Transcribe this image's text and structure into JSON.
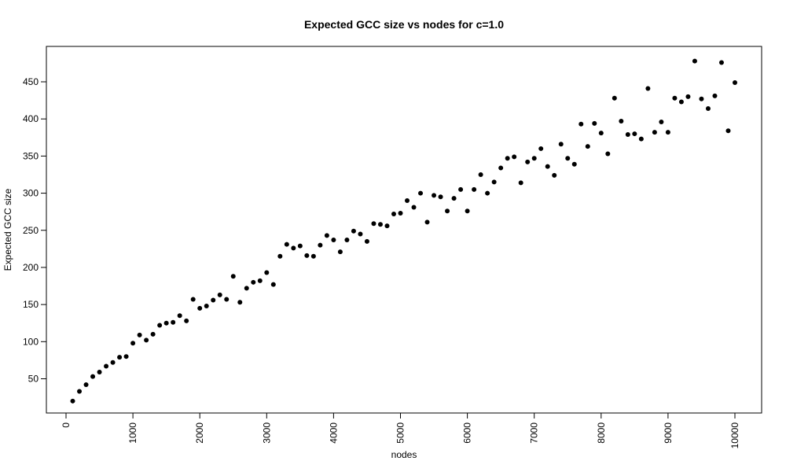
{
  "chart_data": {
    "type": "scatter",
    "title": "Expected GCC size vs nodes for c=1.0",
    "xlabel": "nodes",
    "ylabel": "Expected GCC size",
    "xlim": [
      0,
      10000
    ],
    "ylim": [
      15,
      480
    ],
    "x_ticks": [
      0,
      1000,
      2000,
      3000,
      4000,
      5000,
      6000,
      7000,
      8000,
      9000,
      10000
    ],
    "y_ticks": [
      50,
      100,
      150,
      200,
      250,
      300,
      350,
      400,
      450
    ],
    "grid": false,
    "legend": "none",
    "point_color": "#000000",
    "x": [
      100,
      200,
      300,
      400,
      500,
      600,
      700,
      800,
      900,
      1000,
      1100,
      1200,
      1300,
      1400,
      1500,
      1600,
      1700,
      1800,
      1900,
      2000,
      2100,
      2200,
      2300,
      2400,
      2500,
      2600,
      2700,
      2800,
      2900,
      3000,
      3100,
      3200,
      3300,
      3400,
      3500,
      3600,
      3700,
      3800,
      3900,
      4000,
      4100,
      4200,
      4300,
      4400,
      4500,
      4600,
      4700,
      4800,
      4900,
      5000,
      5100,
      5200,
      5300,
      5400,
      5500,
      5600,
      5700,
      5800,
      5900,
      6000,
      6100,
      6200,
      6300,
      6400,
      6500,
      6600,
      6700,
      6800,
      6900,
      7000,
      7100,
      7200,
      7300,
      7400,
      7500,
      7600,
      7700,
      7800,
      7900,
      8000,
      8100,
      8200,
      8300,
      8400,
      8500,
      8600,
      8700,
      8800,
      8900,
      9000,
      9100,
      9200,
      9300,
      9400,
      9500,
      9600,
      9700,
      9800,
      9900,
      10000
    ],
    "y": [
      20,
      33,
      42,
      53,
      59,
      67,
      72,
      79,
      80,
      98,
      109,
      102,
      110,
      122,
      125,
      126,
      135,
      128,
      157,
      145,
      148,
      156,
      163,
      157,
      188,
      153,
      172,
      180,
      182,
      193,
      177,
      215,
      231,
      226,
      229,
      216,
      215,
      230,
      243,
      237,
      221,
      237,
      249,
      245,
      235,
      259,
      258,
      256,
      272,
      273,
      290,
      281,
      300,
      261,
      297,
      295,
      276,
      293,
      305,
      276,
      305,
      325,
      300,
      315,
      334,
      347,
      349,
      314,
      342,
      347,
      360,
      336,
      324,
      366,
      347,
      339,
      393,
      363,
      394,
      381,
      353,
      428,
      397,
      379,
      380,
      373,
      441,
      382,
      396,
      382,
      428,
      423,
      430,
      478,
      427,
      414,
      431,
      476,
      384,
      449
    ]
  }
}
